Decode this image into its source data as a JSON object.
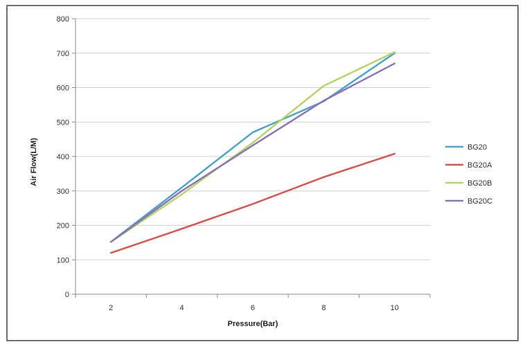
{
  "chart_data": {
    "type": "line",
    "title": "",
    "xlabel": "Pressure(Bar)",
    "ylabel": "Air Flow(L/M)",
    "x": [
      2,
      4,
      6,
      8,
      10
    ],
    "x_ticks": [
      "2",
      "4",
      "6",
      "8",
      "10"
    ],
    "xlim": [
      1,
      11
    ],
    "ylim": [
      0,
      800
    ],
    "y_ticks": [
      "0",
      "100",
      "200",
      "300",
      "400",
      "500",
      "600",
      "700",
      "800"
    ],
    "grid": "horizontal",
    "legend_position": "right",
    "series": [
      {
        "name": "BG20",
        "color": "#4aa3c8",
        "values": [
          152,
          310,
          470,
          560,
          700
        ]
      },
      {
        "name": "BG20A",
        "color": "#d9534f",
        "values": [
          120,
          190,
          262,
          340,
          408
        ]
      },
      {
        "name": "BG20B",
        "color": "#b5d56a",
        "values": [
          152,
          290,
          440,
          605,
          703
        ]
      },
      {
        "name": "BG20C",
        "color": "#8e73b6",
        "values": [
          152,
          300,
          432,
          562,
          670
        ]
      }
    ]
  }
}
